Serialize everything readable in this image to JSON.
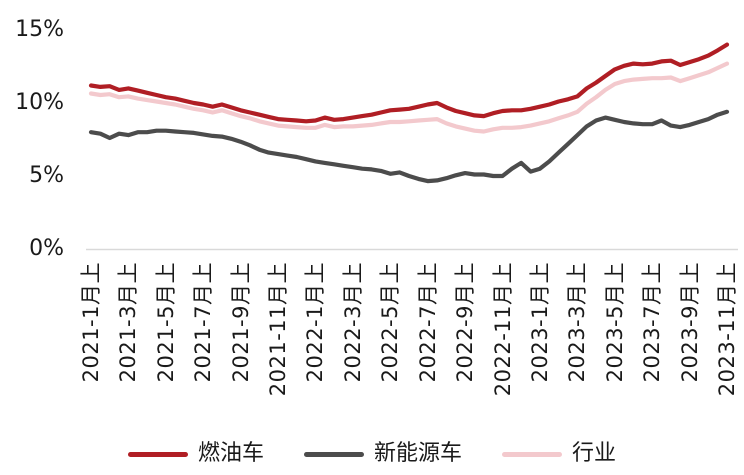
{
  "chart_data": {
    "type": "line",
    "title": "",
    "ylabel": "",
    "xlabel": "",
    "ylim": [
      0,
      15
    ],
    "grid": false,
    "legend_position": "bottom",
    "y_ticks": {
      "labels": [
        "15%",
        "10%",
        "5%",
        "0%"
      ],
      "values": [
        15,
        10,
        5,
        0
      ]
    },
    "x_tick_labels": [
      "2021-1月上",
      "2021-3月上",
      "2021-5月上",
      "2021-7月上",
      "2021-9月上",
      "2021-11月上",
      "2022-1月上",
      "2022-3月上",
      "2022-5月上",
      "2022-7月上",
      "2022-9月上",
      "2022-11月上",
      "2023-1月上",
      "2023-3月上",
      "2023-5月上",
      "2023-7月上",
      "2023-9月上",
      "2023-11月上"
    ],
    "points_per_tick": 4,
    "x_resolution": "semi-monthly",
    "series": [
      {
        "name": "燃油车",
        "color": "#b01e24",
        "values": [
          11.2,
          11.1,
          11.15,
          10.9,
          11.0,
          10.85,
          10.7,
          10.55,
          10.4,
          10.3,
          10.15,
          10.0,
          9.9,
          9.75,
          9.9,
          9.7,
          9.5,
          9.35,
          9.2,
          9.05,
          8.9,
          8.85,
          8.8,
          8.75,
          8.8,
          9.0,
          8.85,
          8.9,
          9.0,
          9.1,
          9.2,
          9.35,
          9.5,
          9.55,
          9.6,
          9.75,
          9.9,
          10.0,
          9.7,
          9.45,
          9.3,
          9.15,
          9.1,
          9.3,
          9.45,
          9.5,
          9.5,
          9.6,
          9.75,
          9.9,
          10.1,
          10.25,
          10.45,
          11.0,
          11.4,
          11.85,
          12.3,
          12.55,
          12.7,
          12.65,
          12.7,
          12.85,
          12.9,
          12.6,
          12.8,
          13.0,
          13.25,
          13.6,
          14.0
        ]
      },
      {
        "name": "新能源车",
        "color": "#4c4c4c",
        "values": [
          8.0,
          7.9,
          7.6,
          7.9,
          7.8,
          8.0,
          8.0,
          8.1,
          8.1,
          8.05,
          8.0,
          7.95,
          7.85,
          7.75,
          7.7,
          7.55,
          7.35,
          7.1,
          6.8,
          6.6,
          6.5,
          6.4,
          6.3,
          6.15,
          6.0,
          5.9,
          5.8,
          5.7,
          5.6,
          5.5,
          5.45,
          5.35,
          5.15,
          5.25,
          5.0,
          4.8,
          4.65,
          4.7,
          4.85,
          5.05,
          5.2,
          5.1,
          5.1,
          5.0,
          5.0,
          5.5,
          5.9,
          5.3,
          5.5,
          6.0,
          6.6,
          7.2,
          7.8,
          8.4,
          8.8,
          9.0,
          8.85,
          8.7,
          8.6,
          8.55,
          8.55,
          8.8,
          8.45,
          8.35,
          8.5,
          8.7,
          8.9,
          9.2,
          9.4
        ]
      },
      {
        "name": "行业",
        "color": "#f3c9cd",
        "values": [
          10.65,
          10.55,
          10.6,
          10.4,
          10.45,
          10.3,
          10.2,
          10.1,
          10.0,
          9.9,
          9.75,
          9.6,
          9.5,
          9.35,
          9.5,
          9.3,
          9.1,
          8.95,
          8.75,
          8.6,
          8.45,
          8.4,
          8.35,
          8.3,
          8.3,
          8.5,
          8.35,
          8.4,
          8.4,
          8.45,
          8.5,
          8.6,
          8.7,
          8.7,
          8.75,
          8.8,
          8.85,
          8.9,
          8.6,
          8.4,
          8.25,
          8.1,
          8.05,
          8.2,
          8.3,
          8.3,
          8.35,
          8.45,
          8.6,
          8.75,
          8.95,
          9.15,
          9.4,
          9.95,
          10.4,
          10.9,
          11.3,
          11.5,
          11.6,
          11.65,
          11.7,
          11.7,
          11.75,
          11.5,
          11.7,
          11.9,
          12.1,
          12.4,
          12.7
        ]
      }
    ]
  },
  "legend": {
    "items": [
      {
        "label": "燃油车",
        "color": "#b01e24"
      },
      {
        "label": "新能源车",
        "color": "#4c4c4c"
      },
      {
        "label": "行业",
        "color": "#f3c9cd"
      }
    ]
  },
  "colors": {
    "axis_line": "#d9d9d9",
    "text": "#1a1a1a",
    "background": "#ffffff"
  }
}
